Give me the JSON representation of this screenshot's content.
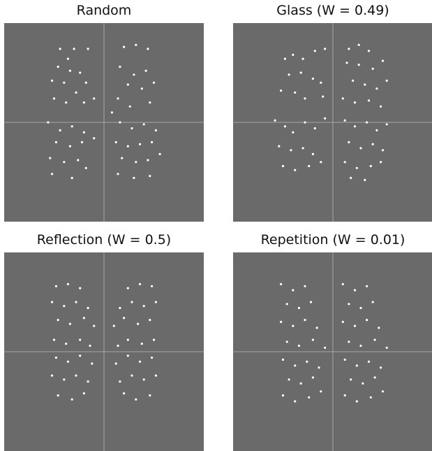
{
  "panels": [
    {
      "title": "Random",
      "dots": [
        [
          0.28,
          0.13
        ],
        [
          0.35,
          0.13
        ],
        [
          0.42,
          0.13
        ],
        [
          0.32,
          0.18
        ],
        [
          0.27,
          0.22
        ],
        [
          0.33,
          0.24
        ],
        [
          0.38,
          0.25
        ],
        [
          0.24,
          0.29
        ],
        [
          0.3,
          0.3
        ],
        [
          0.41,
          0.3
        ],
        [
          0.36,
          0.35
        ],
        [
          0.25,
          0.38
        ],
        [
          0.31,
          0.4
        ],
        [
          0.4,
          0.4
        ],
        [
          0.45,
          0.38
        ],
        [
          0.6,
          0.12
        ],
        [
          0.66,
          0.11
        ],
        [
          0.72,
          0.13
        ],
        [
          0.58,
          0.22
        ],
        [
          0.65,
          0.26
        ],
        [
          0.71,
          0.24
        ],
        [
          0.62,
          0.31
        ],
        [
          0.69,
          0.33
        ],
        [
          0.75,
          0.3
        ],
        [
          0.57,
          0.38
        ],
        [
          0.63,
          0.42
        ],
        [
          0.73,
          0.4
        ],
        [
          0.54,
          0.45
        ],
        [
          0.22,
          0.5
        ],
        [
          0.28,
          0.54
        ],
        [
          0.34,
          0.52
        ],
        [
          0.4,
          0.55
        ],
        [
          0.26,
          0.6
        ],
        [
          0.33,
          0.62
        ],
        [
          0.39,
          0.6
        ],
        [
          0.45,
          0.58
        ],
        [
          0.23,
          0.68
        ],
        [
          0.3,
          0.7
        ],
        [
          0.37,
          0.69
        ],
        [
          0.24,
          0.76
        ],
        [
          0.34,
          0.78
        ],
        [
          0.41,
          0.73
        ],
        [
          0.58,
          0.5
        ],
        [
          0.64,
          0.53
        ],
        [
          0.7,
          0.51
        ],
        [
          0.76,
          0.54
        ],
        [
          0.56,
          0.6
        ],
        [
          0.62,
          0.62
        ],
        [
          0.68,
          0.61
        ],
        [
          0.74,
          0.6
        ],
        [
          0.59,
          0.68
        ],
        [
          0.66,
          0.7
        ],
        [
          0.72,
          0.69
        ],
        [
          0.78,
          0.66
        ],
        [
          0.57,
          0.76
        ],
        [
          0.65,
          0.78
        ],
        [
          0.73,
          0.77
        ]
      ]
    },
    {
      "title": "Glass (W = 0.49)",
      "dots": [
        [
          0.26,
          0.18
        ],
        [
          0.3,
          0.16
        ],
        [
          0.35,
          0.18
        ],
        [
          0.41,
          0.14
        ],
        [
          0.46,
          0.13
        ],
        [
          0.28,
          0.26
        ],
        [
          0.34,
          0.25
        ],
        [
          0.4,
          0.28
        ],
        [
          0.44,
          0.3
        ],
        [
          0.24,
          0.34
        ],
        [
          0.31,
          0.35
        ],
        [
          0.36,
          0.38
        ],
        [
          0.45,
          0.37
        ],
        [
          0.58,
          0.13
        ],
        [
          0.63,
          0.11
        ],
        [
          0.68,
          0.14
        ],
        [
          0.57,
          0.2
        ],
        [
          0.63,
          0.21
        ],
        [
          0.7,
          0.23
        ],
        [
          0.75,
          0.19
        ],
        [
          0.6,
          0.29
        ],
        [
          0.66,
          0.31
        ],
        [
          0.72,
          0.33
        ],
        [
          0.77,
          0.29
        ],
        [
          0.55,
          0.38
        ],
        [
          0.61,
          0.4
        ],
        [
          0.68,
          0.39
        ],
        [
          0.74,
          0.42
        ],
        [
          0.21,
          0.49
        ],
        [
          0.26,
          0.52
        ],
        [
          0.3,
          0.55
        ],
        [
          0.36,
          0.5
        ],
        [
          0.41,
          0.53
        ],
        [
          0.46,
          0.48
        ],
        [
          0.23,
          0.62
        ],
        [
          0.29,
          0.64
        ],
        [
          0.35,
          0.63
        ],
        [
          0.4,
          0.66
        ],
        [
          0.25,
          0.72
        ],
        [
          0.31,
          0.74
        ],
        [
          0.38,
          0.72
        ],
        [
          0.44,
          0.7
        ],
        [
          0.56,
          0.49
        ],
        [
          0.61,
          0.52
        ],
        [
          0.67,
          0.5
        ],
        [
          0.72,
          0.54
        ],
        [
          0.77,
          0.51
        ],
        [
          0.58,
          0.6
        ],
        [
          0.64,
          0.63
        ],
        [
          0.7,
          0.61
        ],
        [
          0.75,
          0.64
        ],
        [
          0.56,
          0.7
        ],
        [
          0.62,
          0.73
        ],
        [
          0.69,
          0.72
        ],
        [
          0.74,
          0.7
        ],
        [
          0.59,
          0.78
        ],
        [
          0.66,
          0.79
        ]
      ]
    },
    {
      "title": "Reflection (W = 0.5)",
      "dots": [
        [
          0.26,
          0.17
        ],
        [
          0.32,
          0.16
        ],
        [
          0.38,
          0.18
        ],
        [
          0.24,
          0.25
        ],
        [
          0.3,
          0.27
        ],
        [
          0.36,
          0.25
        ],
        [
          0.42,
          0.28
        ],
        [
          0.27,
          0.34
        ],
        [
          0.33,
          0.36
        ],
        [
          0.4,
          0.33
        ],
        [
          0.45,
          0.37
        ],
        [
          0.25,
          0.44
        ],
        [
          0.31,
          0.46
        ],
        [
          0.38,
          0.44
        ],
        [
          0.43,
          0.47
        ],
        [
          0.74,
          0.17
        ],
        [
          0.68,
          0.16
        ],
        [
          0.62,
          0.18
        ],
        [
          0.76,
          0.25
        ],
        [
          0.7,
          0.27
        ],
        [
          0.64,
          0.25
        ],
        [
          0.58,
          0.28
        ],
        [
          0.73,
          0.34
        ],
        [
          0.67,
          0.36
        ],
        [
          0.6,
          0.33
        ],
        [
          0.55,
          0.37
        ],
        [
          0.75,
          0.44
        ],
        [
          0.69,
          0.46
        ],
        [
          0.62,
          0.44
        ],
        [
          0.57,
          0.47
        ],
        [
          0.26,
          0.53
        ],
        [
          0.32,
          0.55
        ],
        [
          0.38,
          0.52
        ],
        [
          0.44,
          0.56
        ],
        [
          0.24,
          0.62
        ],
        [
          0.3,
          0.64
        ],
        [
          0.36,
          0.62
        ],
        [
          0.42,
          0.65
        ],
        [
          0.27,
          0.72
        ],
        [
          0.34,
          0.74
        ],
        [
          0.4,
          0.71
        ],
        [
          0.74,
          0.53
        ],
        [
          0.68,
          0.55
        ],
        [
          0.62,
          0.52
        ],
        [
          0.56,
          0.56
        ],
        [
          0.76,
          0.62
        ],
        [
          0.7,
          0.64
        ],
        [
          0.64,
          0.62
        ],
        [
          0.58,
          0.65
        ],
        [
          0.73,
          0.72
        ],
        [
          0.66,
          0.74
        ],
        [
          0.6,
          0.71
        ]
      ]
    },
    {
      "title": "Repetition (W = 0.01)",
      "dots": [
        [
          0.24,
          0.16
        ],
        [
          0.3,
          0.19
        ],
        [
          0.36,
          0.17
        ],
        [
          0.27,
          0.26
        ],
        [
          0.33,
          0.28
        ],
        [
          0.39,
          0.25
        ],
        [
          0.24,
          0.35
        ],
        [
          0.3,
          0.37
        ],
        [
          0.36,
          0.34
        ],
        [
          0.42,
          0.38
        ],
        [
          0.27,
          0.45
        ],
        [
          0.33,
          0.47
        ],
        [
          0.4,
          0.44
        ],
        [
          0.46,
          0.48
        ],
        [
          0.55,
          0.16
        ],
        [
          0.61,
          0.19
        ],
        [
          0.67,
          0.17
        ],
        [
          0.58,
          0.26
        ],
        [
          0.64,
          0.28
        ],
        [
          0.7,
          0.25
        ],
        [
          0.55,
          0.35
        ],
        [
          0.61,
          0.37
        ],
        [
          0.67,
          0.34
        ],
        [
          0.73,
          0.38
        ],
        [
          0.58,
          0.45
        ],
        [
          0.64,
          0.47
        ],
        [
          0.71,
          0.44
        ],
        [
          0.77,
          0.48
        ],
        [
          0.25,
          0.54
        ],
        [
          0.31,
          0.57
        ],
        [
          0.37,
          0.55
        ],
        [
          0.43,
          0.58
        ],
        [
          0.28,
          0.64
        ],
        [
          0.34,
          0.66
        ],
        [
          0.4,
          0.63
        ],
        [
          0.25,
          0.72
        ],
        [
          0.31,
          0.75
        ],
        [
          0.38,
          0.73
        ],
        [
          0.44,
          0.7
        ],
        [
          0.56,
          0.54
        ],
        [
          0.62,
          0.57
        ],
        [
          0.68,
          0.55
        ],
        [
          0.74,
          0.58
        ],
        [
          0.59,
          0.64
        ],
        [
          0.65,
          0.66
        ],
        [
          0.71,
          0.63
        ],
        [
          0.56,
          0.72
        ],
        [
          0.62,
          0.75
        ],
        [
          0.69,
          0.73
        ],
        [
          0.75,
          0.7
        ]
      ]
    }
  ],
  "colors": {
    "background": "#6a6a6a",
    "crosshair": "#a6a6a6",
    "dot": "#ffffff"
  }
}
